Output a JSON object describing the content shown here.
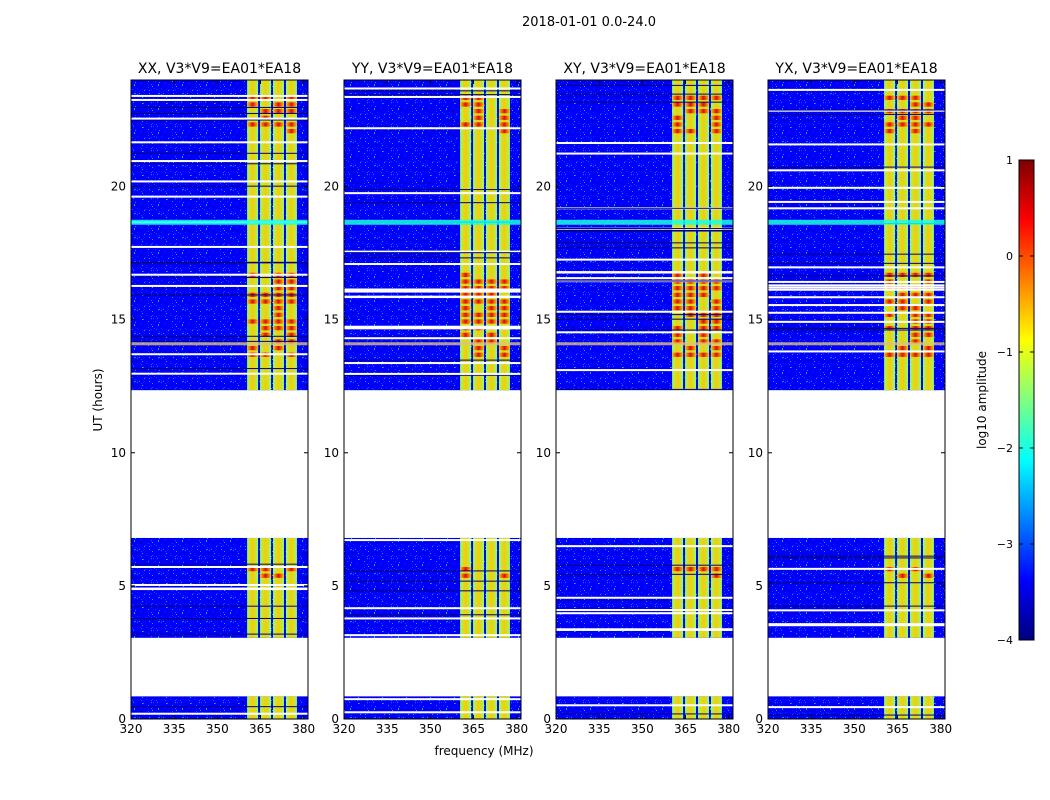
{
  "chart_data": {
    "type": "heatmap",
    "suptitle": "2018-01-01 0.0-24.0",
    "xlabel": "frequency (MHz)",
    "ylabel": "UT (hours)",
    "xlim": [
      320,
      381.5
    ],
    "ylim": [
      0,
      24
    ],
    "xticks": [
      320,
      335,
      350,
      365,
      380
    ],
    "yticks": [
      0,
      5,
      10,
      15,
      20
    ],
    "panels": [
      {
        "title": "XX, V3*V9=EA01*EA18"
      },
      {
        "title": "YY, V3*V9=EA01*EA18"
      },
      {
        "title": "XY, V3*V9=EA01*EA18"
      },
      {
        "title": "YX, V3*V9=EA01*EA18"
      }
    ],
    "data_segments_hours": [
      [
        0,
        0.85
      ],
      [
        3.05,
        6.8
      ],
      [
        12.35,
        24
      ]
    ],
    "strong_band_mhz": [
      360,
      378
    ],
    "colorbar": {
      "label": "log10 amplitude",
      "range": [
        -4,
        1
      ],
      "ticks": [
        1,
        0,
        -1,
        -2,
        -3,
        -4
      ],
      "colormap": [
        "#00007f",
        "#0000ff",
        "#007fff",
        "#00ffff",
        "#7fff7f",
        "#ffff00",
        "#ff7f00",
        "#ff0000",
        "#7f0000"
      ]
    }
  }
}
